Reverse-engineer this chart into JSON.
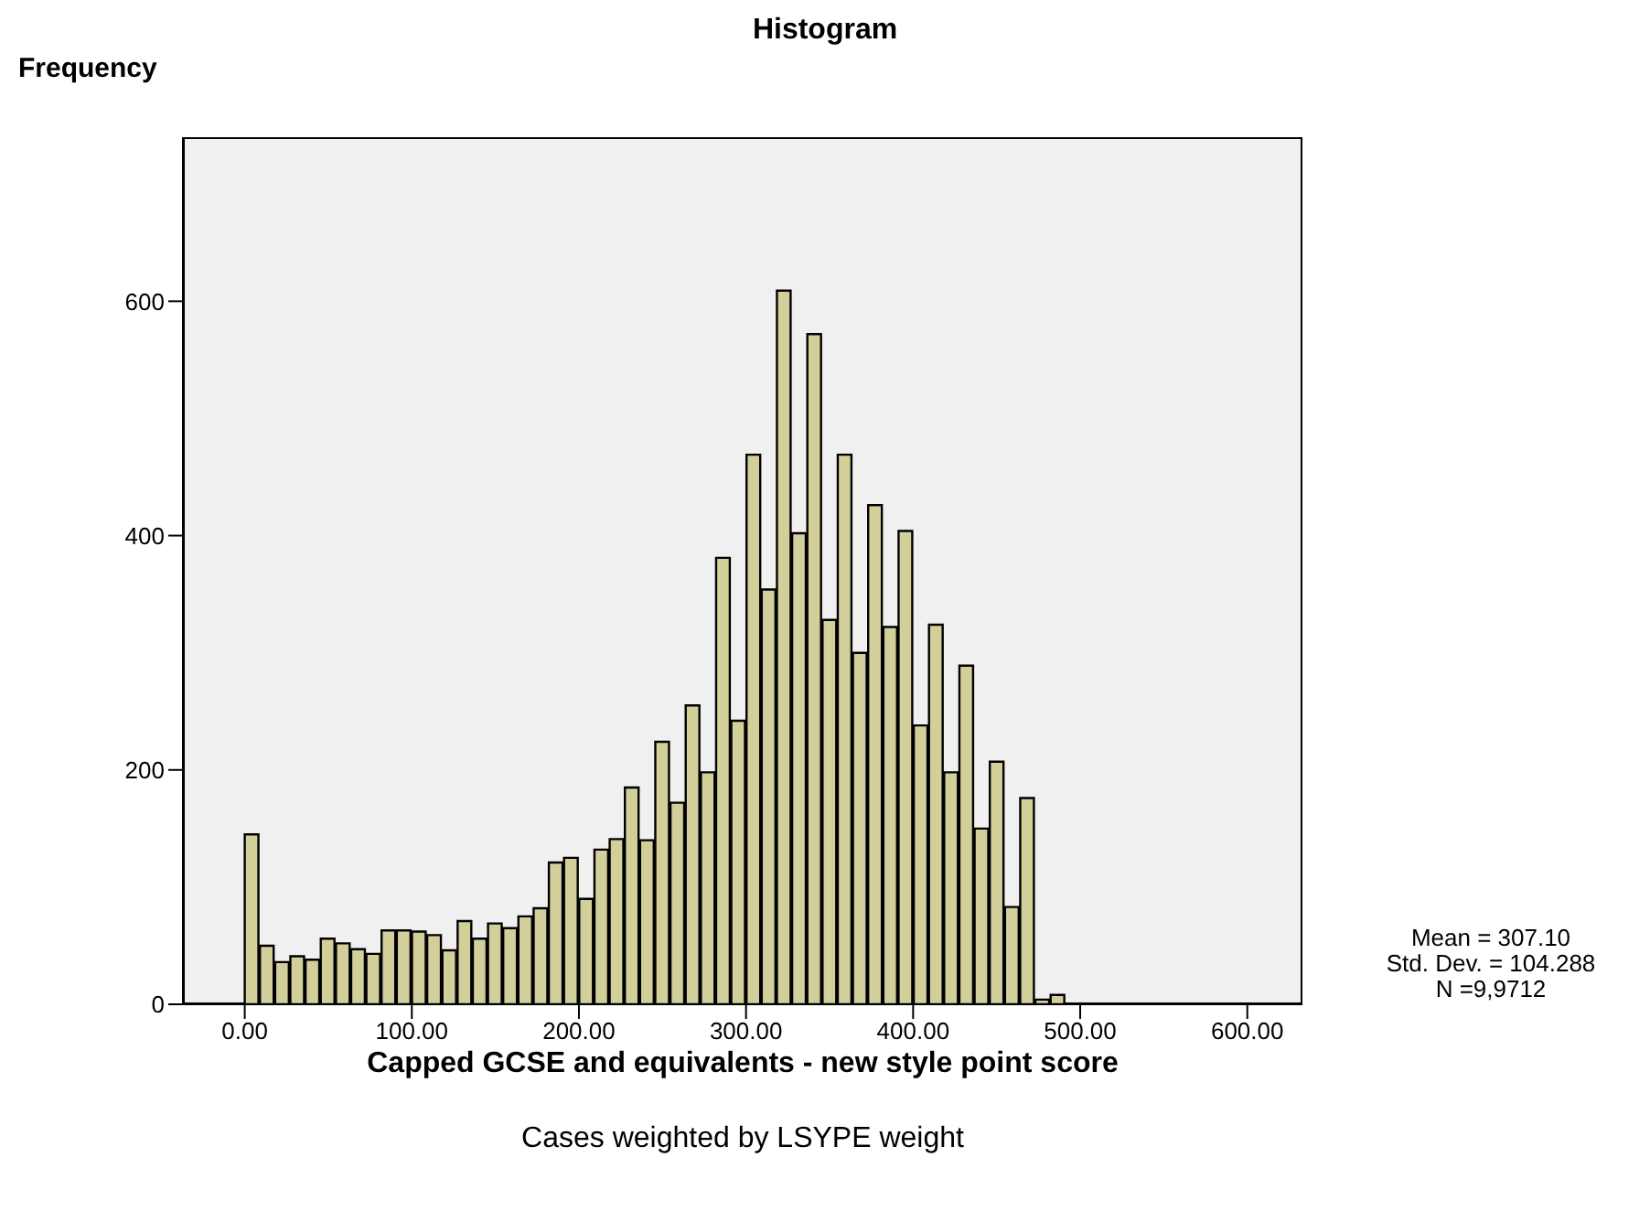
{
  "chart_data": {
    "type": "histogram",
    "title": "Histogram",
    "ylabel": "Frequency",
    "xlabel": "Capped GCSE and equivalents - new style point score",
    "annotations": [
      "Mean = 307.10",
      "Std. Dev. = 104.288",
      "N =9,9712",
      "Cases weighted by LSYPE weight"
    ],
    "bins": [
      0,
      9.1,
      18.2,
      27.3,
      36.4,
      45.5,
      54.6,
      63.7,
      72.8,
      81.9,
      91,
      100.1,
      109.2,
      118.3,
      127.4,
      136.5,
      145.6,
      154.7,
      163.8,
      172.9,
      182,
      191.1,
      200.2,
      209.3,
      218.4,
      227.5,
      236.6,
      245.7,
      254.8,
      263.9,
      273,
      282.1,
      291.2,
      300.3,
      309.4,
      318.5,
      327.6,
      336.7,
      345.8,
      354.9,
      364,
      373.1,
      382.2,
      391.3,
      400.4,
      409.5,
      418.6,
      427.7,
      436.8,
      445.9,
      455,
      464.1,
      473.2,
      482.3,
      491.4,
      500.5,
      509.6
    ],
    "values": [
      145,
      50,
      36,
      41,
      38,
      56,
      52,
      47,
      43,
      63,
      63,
      62,
      59,
      46,
      71,
      56,
      69,
      65,
      75,
      82,
      121,
      125,
      90,
      132,
      141,
      185,
      140,
      224,
      172,
      255,
      198,
      381,
      242,
      469,
      354,
      609,
      402,
      572,
      328,
      469,
      300,
      426,
      322,
      404,
      238,
      324,
      198,
      289,
      150,
      207,
      83,
      176,
      4,
      8,
      0,
      null
    ],
    "color": "#d3cf9a",
    "xlim": [
      -37,
      633
    ],
    "xticks": [
      {
        "value": 0,
        "label": "0.00"
      },
      {
        "value": 100,
        "label": "100.00"
      },
      {
        "value": 200,
        "label": "200.00"
      },
      {
        "value": 300,
        "label": "300.00"
      },
      {
        "value": 400,
        "label": "400.00"
      },
      {
        "value": 500,
        "label": "500.00"
      },
      {
        "value": 600,
        "label": "600.00"
      }
    ],
    "ylim": [
      0,
      740
    ],
    "yticks": [
      0,
      200,
      400,
      600
    ],
    "grid": false,
    "legend": false
  }
}
